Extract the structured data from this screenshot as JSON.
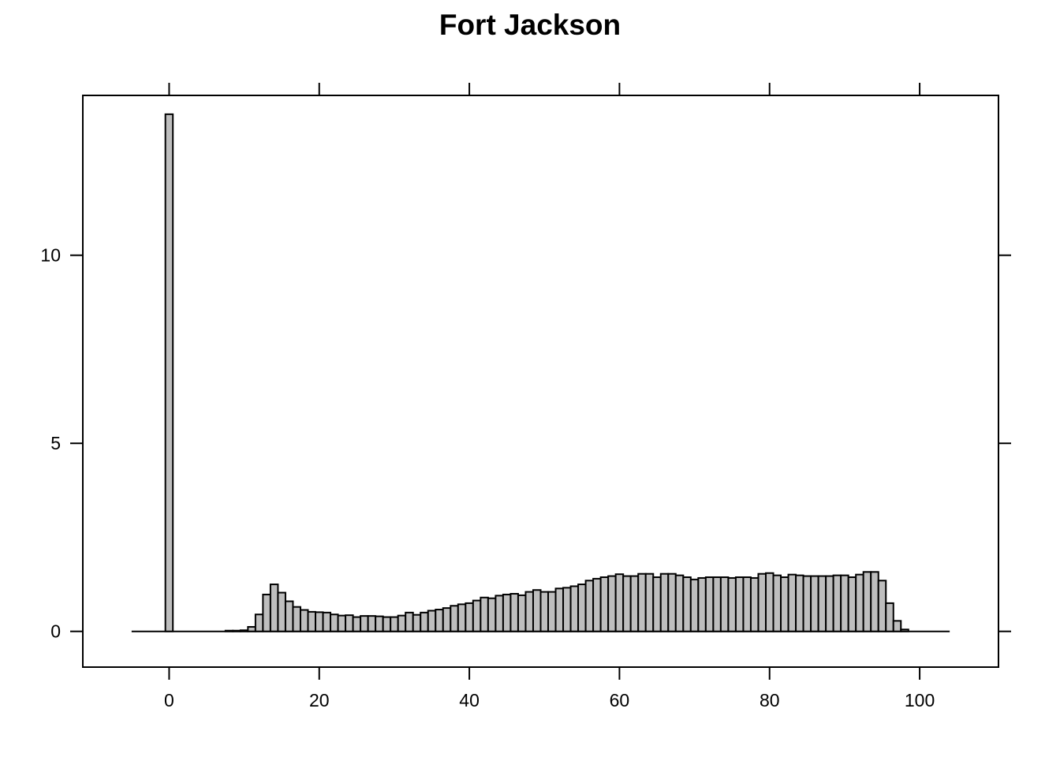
{
  "chart_data": {
    "type": "bar",
    "title": "Fort Jackson",
    "xlabel": "",
    "ylabel": "",
    "xlim": [
      -11.5,
      110.5
    ],
    "ylim": [
      -0.95,
      14.25
    ],
    "x_ticks": [
      0,
      20,
      40,
      60,
      80,
      100
    ],
    "y_ticks": [
      0,
      5,
      10
    ],
    "bin_width": 1,
    "baseline_range": [
      -5,
      104
    ],
    "bins": [
      {
        "x": -0.5,
        "v": 13.75
      },
      {
        "x": 7.5,
        "v": 0.02
      },
      {
        "x": 8.5,
        "v": 0.02
      },
      {
        "x": 9.5,
        "v": 0.03
      },
      {
        "x": 10.5,
        "v": 0.12
      },
      {
        "x": 11.5,
        "v": 0.45
      },
      {
        "x": 12.5,
        "v": 0.98
      },
      {
        "x": 13.5,
        "v": 1.25
      },
      {
        "x": 14.5,
        "v": 1.03
      },
      {
        "x": 15.5,
        "v": 0.8
      },
      {
        "x": 16.5,
        "v": 0.65
      },
      {
        "x": 17.5,
        "v": 0.57
      },
      {
        "x": 18.5,
        "v": 0.52
      },
      {
        "x": 19.5,
        "v": 0.51
      },
      {
        "x": 20.5,
        "v": 0.5
      },
      {
        "x": 21.5,
        "v": 0.45
      },
      {
        "x": 22.5,
        "v": 0.42
      },
      {
        "x": 23.5,
        "v": 0.43
      },
      {
        "x": 24.5,
        "v": 0.38
      },
      {
        "x": 25.5,
        "v": 0.41
      },
      {
        "x": 26.5,
        "v": 0.41
      },
      {
        "x": 27.5,
        "v": 0.4
      },
      {
        "x": 28.5,
        "v": 0.38
      },
      {
        "x": 29.5,
        "v": 0.38
      },
      {
        "x": 30.5,
        "v": 0.42
      },
      {
        "x": 31.5,
        "v": 0.5
      },
      {
        "x": 32.5,
        "v": 0.44
      },
      {
        "x": 33.5,
        "v": 0.5
      },
      {
        "x": 34.5,
        "v": 0.55
      },
      {
        "x": 35.5,
        "v": 0.58
      },
      {
        "x": 36.5,
        "v": 0.62
      },
      {
        "x": 37.5,
        "v": 0.68
      },
      {
        "x": 38.5,
        "v": 0.72
      },
      {
        "x": 39.5,
        "v": 0.75
      },
      {
        "x": 40.5,
        "v": 0.82
      },
      {
        "x": 41.5,
        "v": 0.9
      },
      {
        "x": 42.5,
        "v": 0.88
      },
      {
        "x": 43.5,
        "v": 0.95
      },
      {
        "x": 44.5,
        "v": 0.98
      },
      {
        "x": 45.5,
        "v": 1.0
      },
      {
        "x": 46.5,
        "v": 0.96
      },
      {
        "x": 47.5,
        "v": 1.05
      },
      {
        "x": 48.5,
        "v": 1.1
      },
      {
        "x": 49.5,
        "v": 1.05
      },
      {
        "x": 50.5,
        "v": 1.05
      },
      {
        "x": 51.5,
        "v": 1.14
      },
      {
        "x": 52.5,
        "v": 1.16
      },
      {
        "x": 53.5,
        "v": 1.2
      },
      {
        "x": 54.5,
        "v": 1.25
      },
      {
        "x": 55.5,
        "v": 1.35
      },
      {
        "x": 56.5,
        "v": 1.4
      },
      {
        "x": 57.5,
        "v": 1.44
      },
      {
        "x": 58.5,
        "v": 1.47
      },
      {
        "x": 59.5,
        "v": 1.52
      },
      {
        "x": 60.5,
        "v": 1.47
      },
      {
        "x": 61.5,
        "v": 1.47
      },
      {
        "x": 62.5,
        "v": 1.53
      },
      {
        "x": 63.5,
        "v": 1.53
      },
      {
        "x": 64.5,
        "v": 1.44
      },
      {
        "x": 65.5,
        "v": 1.53
      },
      {
        "x": 66.5,
        "v": 1.53
      },
      {
        "x": 67.5,
        "v": 1.49
      },
      {
        "x": 68.5,
        "v": 1.44
      },
      {
        "x": 69.5,
        "v": 1.38
      },
      {
        "x": 70.5,
        "v": 1.42
      },
      {
        "x": 71.5,
        "v": 1.44
      },
      {
        "x": 72.5,
        "v": 1.44
      },
      {
        "x": 73.5,
        "v": 1.44
      },
      {
        "x": 74.5,
        "v": 1.42
      },
      {
        "x": 75.5,
        "v": 1.44
      },
      {
        "x": 76.5,
        "v": 1.44
      },
      {
        "x": 77.5,
        "v": 1.42
      },
      {
        "x": 78.5,
        "v": 1.53
      },
      {
        "x": 79.5,
        "v": 1.55
      },
      {
        "x": 80.5,
        "v": 1.49
      },
      {
        "x": 81.5,
        "v": 1.44
      },
      {
        "x": 82.5,
        "v": 1.51
      },
      {
        "x": 83.5,
        "v": 1.49
      },
      {
        "x": 84.5,
        "v": 1.47
      },
      {
        "x": 85.5,
        "v": 1.47
      },
      {
        "x": 86.5,
        "v": 1.47
      },
      {
        "x": 87.5,
        "v": 1.47
      },
      {
        "x": 88.5,
        "v": 1.49
      },
      {
        "x": 89.5,
        "v": 1.49
      },
      {
        "x": 90.5,
        "v": 1.44
      },
      {
        "x": 91.5,
        "v": 1.51
      },
      {
        "x": 92.5,
        "v": 1.58
      },
      {
        "x": 93.5,
        "v": 1.58
      },
      {
        "x": 94.5,
        "v": 1.35
      },
      {
        "x": 95.5,
        "v": 0.75
      },
      {
        "x": 96.5,
        "v": 0.28
      },
      {
        "x": 97.5,
        "v": 0.05
      }
    ]
  }
}
